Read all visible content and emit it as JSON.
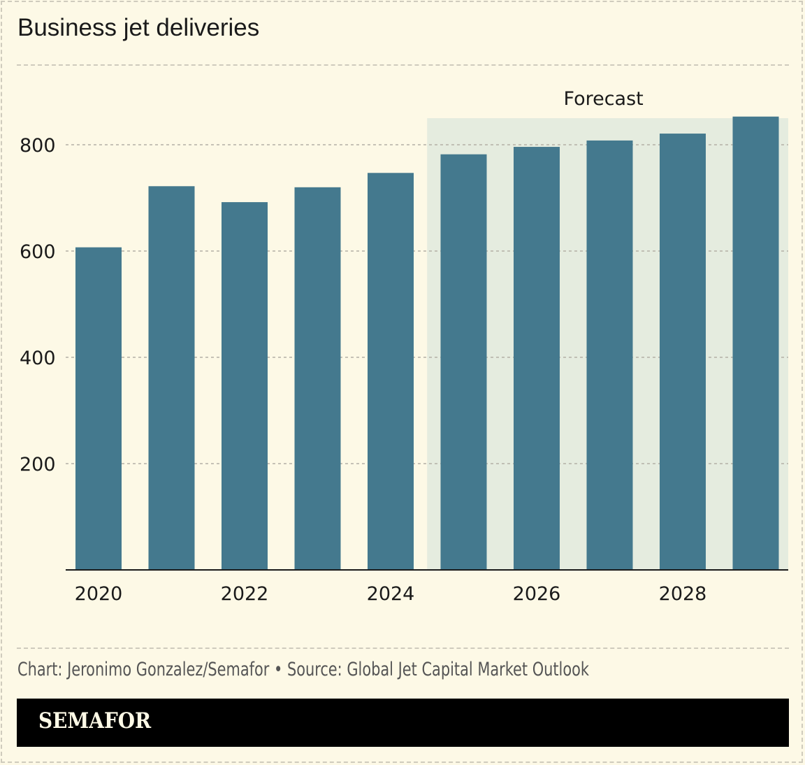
{
  "title": "Business jet deliveries",
  "credit": "Chart: Jeronimo Gonzalez/Semafor • Source: Global Jet Capital Market Outlook",
  "logo": "SEMAFOR",
  "colors": {
    "bar": "#44798e",
    "forecast_shade": "#e5ecdf",
    "background": "#fdf9e6"
  },
  "chart_data": {
    "type": "bar",
    "title": "Business jet deliveries",
    "categories": [
      "2020",
      "2021",
      "2022",
      "2023",
      "2024",
      "2025",
      "2026",
      "2027",
      "2028",
      "2029"
    ],
    "values": [
      607,
      722,
      692,
      720,
      747,
      782,
      796,
      808,
      821,
      853
    ],
    "x_tick_labels": [
      "2020",
      "2022",
      "2024",
      "2026",
      "2028"
    ],
    "y_ticks": [
      200,
      400,
      600,
      800
    ],
    "ylim": [
      0,
      850
    ],
    "grid": true,
    "annotation": {
      "label": "Forecast",
      "from": "2025",
      "to": "2029"
    }
  }
}
